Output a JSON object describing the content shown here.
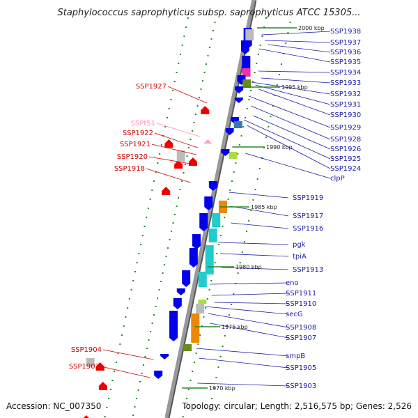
{
  "title": "Staphylococcus saprophyticus subsp. saprophyticus ATCC 15305...",
  "accession": "Accession: NC_007350",
  "topology": "Topology: circular; Length: 2,516,575 bp; Genes: 2,526",
  "colors": {
    "backbone": "#999999",
    "plus_label": "#1a1aa8",
    "minus_label": "#cc0000",
    "trna_label": "#ff88bb",
    "plus_gene": "#0000ee",
    "minus_gene": "#ee0000",
    "tick": "#228822"
  },
  "scale": [
    "2000 kbp",
    "1995 kbp",
    "1990 kbp",
    "1985 kbp",
    "1980 kbp",
    "1975 kbp",
    "1970 kbp"
  ],
  "right_labels": [
    "SSP1938",
    "SSP1937",
    "SSP1936",
    "SSP1935",
    "SSP1934",
    "SSP1933",
    "SSP1932",
    "SSP1931",
    "SSP1930",
    "SSP1929",
    "SSP1928",
    "SSP1926",
    "SSP1925",
    "SSP1924",
    "clpP",
    "SSP1919",
    "SSP1917",
    "SSP1916",
    "pgk",
    "tpiA",
    "SSP1913",
    "eno",
    "SSP1911",
    "SSP1910",
    "secG",
    "SSP1908",
    "SSP1907",
    "smpB",
    "SSP1905",
    "SSP1903"
  ],
  "left_labels": [
    {
      "text": "SSP1927",
      "kind": "gene"
    },
    {
      "text": "SSPt51",
      "kind": "trna"
    },
    {
      "text": "SSP1922",
      "kind": "gene"
    },
    {
      "text": "SSP1921",
      "kind": "gene"
    },
    {
      "text": "SSP1920",
      "kind": "gene"
    },
    {
      "text": "SSP1918",
      "kind": "gene"
    },
    {
      "text": "SSP1904",
      "kind": "gene"
    },
    {
      "text": "SSP1902",
      "kind": "gene"
    }
  ]
}
